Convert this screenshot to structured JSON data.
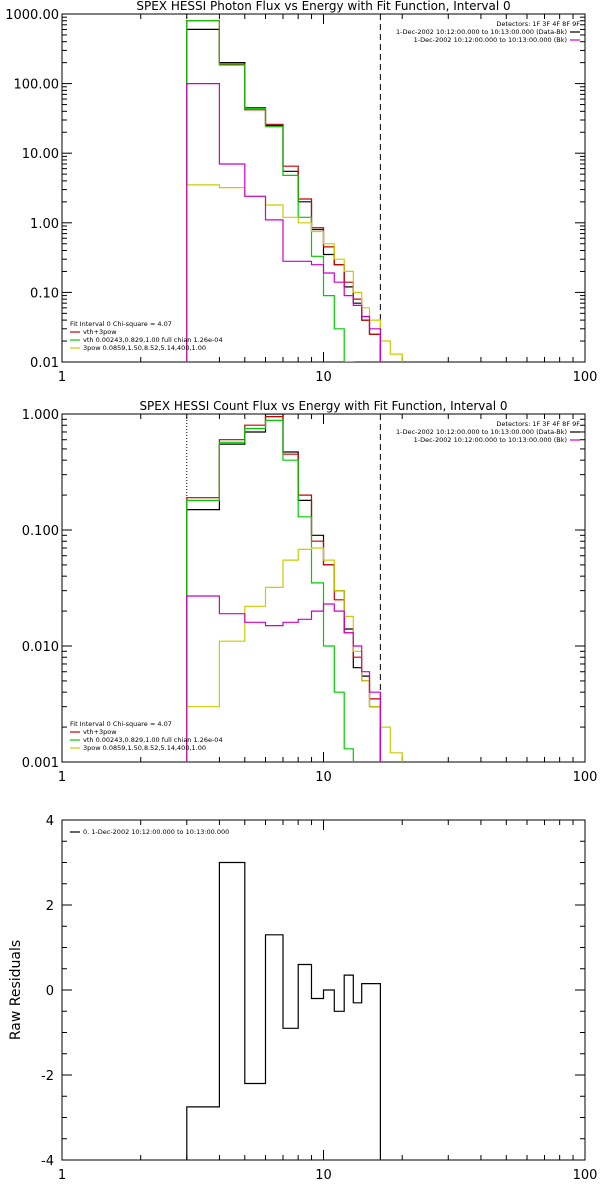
{
  "chart_data": [
    {
      "type": "line",
      "title": "SPEX HESSI Photon Flux vs Energy with Fit Function, Interval 0",
      "xscale": "log",
      "yscale": "log",
      "xlim": [
        1,
        100
      ],
      "ylim": [
        0.01,
        1000
      ],
      "x_ticks": [
        "1",
        "10",
        "100"
      ],
      "y_ticks": [
        "1000.00",
        "100.00",
        "10.00",
        "1.00",
        "0.10",
        "0.01"
      ],
      "legend_top_right": {
        "header": "Detectors: 1F 3F 4F 8F 9F",
        "entries": [
          {
            "label": "1-Dec-2002 10:12:00.000 to 10:13:00.000 (Data-Bk)",
            "color": "#000000"
          },
          {
            "label": "1-Dec-2002 10:12:00.000 to 10:13:00.000 (Bk)",
            "color": "#cc00cc"
          }
        ]
      },
      "legend_bottom_left": {
        "header": "Fit Interval 0   Chi-square = 4.07",
        "entries": [
          {
            "label": "vth+3pow",
            "color": "#cc0000"
          },
          {
            "label": "vth 0.00243,0.829,1.00   full chian 1.26e-04",
            "color": "#00cc00"
          },
          {
            "label": "3pow 0.0859,1.50,8.52,5.14,400,1.00",
            "color": "#cccc00"
          }
        ]
      },
      "vlines": [
        {
          "x": 3,
          "style": "dotted"
        },
        {
          "x": 16.5,
          "style": "dashed"
        }
      ],
      "bin_edges": [
        3,
        4,
        5,
        6,
        7,
        8,
        9,
        10,
        11,
        12,
        13,
        14,
        15,
        16.5,
        18,
        20,
        22
      ],
      "series": [
        {
          "id": "data-bk",
          "color": "#000000",
          "values": [
            600,
            200,
            45,
            25,
            5.5,
            2.0,
            0.8,
            0.35,
            0.25,
            0.12,
            0.07,
            0.04,
            0.025,
            null,
            null,
            null
          ]
        },
        {
          "id": "vth+3pow",
          "color": "#cc0000",
          "values": [
            800,
            190,
            42,
            26,
            6.5,
            2.2,
            0.85,
            0.45,
            0.25,
            0.14,
            0.08,
            0.04,
            0.025,
            null,
            null,
            null
          ]
        },
        {
          "id": "vth",
          "color": "#00cc00",
          "values": [
            800,
            185,
            44,
            24,
            4.8,
            1.2,
            0.33,
            0.09,
            0.03,
            0.01,
            0.004,
            null,
            null,
            null,
            null,
            null
          ]
        },
        {
          "id": "3pow",
          "color": "#cccc00",
          "values": [
            3.5,
            3.2,
            2.4,
            1.8,
            1.2,
            1.0,
            0.75,
            0.5,
            0.3,
            0.2,
            0.1,
            0.06,
            0.04,
            0.02,
            0.013,
            0.009
          ]
        },
        {
          "id": "bk",
          "color": "#cc00cc",
          "values": [
            100,
            7,
            2.4,
            1.1,
            0.28,
            0.28,
            0.25,
            0.19,
            0.14,
            0.09,
            0.065,
            0.045,
            0.03,
            null,
            null,
            null
          ]
        }
      ]
    },
    {
      "type": "line",
      "title": "SPEX HESSI Count Flux vs Energy with Fit Function, Interval 0",
      "xscale": "log",
      "yscale": "log",
      "xlim": [
        1,
        100
      ],
      "ylim": [
        0.001,
        1
      ],
      "x_ticks": [
        "1",
        "10",
        "100"
      ],
      "y_ticks": [
        "1.000",
        "0.100",
        "0.010",
        "0.001"
      ],
      "legend_top_right": {
        "header": "Detectors: 1F 3F 4F 8F 9F",
        "entries": [
          {
            "label": "1-Dec-2002 10:12:00.000 to 10:13:00.000 (Data-Bk)",
            "color": "#000000"
          },
          {
            "label": "1-Dec-2002 10:12:00.000 to 10:13:00.000 (Bk)",
            "color": "#cc00cc"
          }
        ]
      },
      "legend_bottom_left": {
        "header": "Fit Interval 0   Chi-square = 4.07",
        "entries": [
          {
            "label": "vth+3pow",
            "color": "#cc0000"
          },
          {
            "label": "vth 0.00243,0.829,1.00   full chian 1.26e-04",
            "color": "#00cc00"
          },
          {
            "label": "3pow 0.0859,1.50,8.52,5.14,400,1.00",
            "color": "#cccc00"
          }
        ]
      },
      "vlines": [
        {
          "x": 3,
          "style": "dotted"
        },
        {
          "x": 16.5,
          "style": "dashed"
        }
      ],
      "bin_edges": [
        3,
        4,
        5,
        6,
        7,
        8,
        9,
        10,
        11,
        12,
        13,
        14,
        15,
        16.5,
        18,
        20,
        22
      ],
      "series": [
        {
          "id": "data-bk",
          "color": "#000000",
          "values": [
            0.15,
            0.55,
            0.7,
            1.0,
            0.47,
            0.18,
            0.09,
            0.05,
            0.03,
            0.014,
            0.0065,
            0.0055,
            0.003,
            null,
            null,
            null
          ]
        },
        {
          "id": "vth+3pow",
          "color": "#cc0000",
          "values": [
            0.19,
            0.6,
            0.8,
            0.95,
            0.45,
            0.2,
            0.08,
            0.05,
            0.025,
            0.013,
            0.008,
            0.005,
            0.0035,
            null,
            null,
            null
          ]
        },
        {
          "id": "vth",
          "color": "#00cc00",
          "values": [
            0.18,
            0.57,
            0.75,
            0.88,
            0.4,
            0.13,
            0.035,
            0.01,
            0.004,
            0.0013,
            null,
            null,
            null,
            null,
            null,
            null
          ]
        },
        {
          "id": "3pow",
          "color": "#cccc00",
          "values": [
            0.003,
            0.011,
            0.022,
            0.032,
            0.055,
            0.068,
            0.07,
            0.055,
            0.03,
            0.018,
            0.009,
            0.005,
            0.003,
            0.002,
            0.0012,
            0.0009
          ]
        },
        {
          "id": "bk",
          "color": "#cc00cc",
          "values": [
            0.027,
            0.019,
            0.016,
            0.015,
            0.016,
            0.017,
            0.02,
            0.023,
            0.02,
            0.013,
            0.01,
            0.006,
            0.004,
            null,
            null,
            null
          ]
        }
      ]
    },
    {
      "type": "line",
      "title": "",
      "xscale": "log",
      "yscale": "linear",
      "xlim": [
        1,
        100
      ],
      "ylim": [
        -4,
        4
      ],
      "x_ticks": [
        "1",
        "10",
        "100"
      ],
      "y_ticks": [
        "4",
        "2",
        "0",
        "-2",
        "-4"
      ],
      "ylabel": "Raw Residuals",
      "legend": {
        "label": "0. 1-Dec-2002 10:12:00.000 to 10:13:00.000",
        "color": "#000000"
      },
      "bin_edges": [
        3,
        4,
        5,
        6,
        7,
        8,
        9,
        10,
        11,
        12,
        13,
        14,
        15,
        16.5
      ],
      "series": [
        {
          "id": "residuals",
          "color": "#000000",
          "values": [
            -2.75,
            3.0,
            -2.2,
            1.3,
            -0.9,
            0.6,
            -0.2,
            0.0,
            -0.5,
            0.35,
            -0.3,
            0.15,
            0.15
          ]
        }
      ]
    }
  ]
}
